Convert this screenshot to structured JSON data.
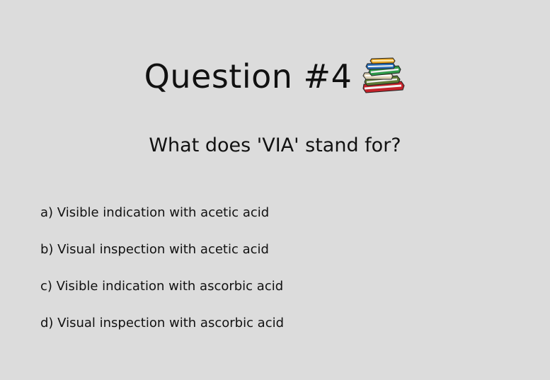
{
  "slide": {
    "title": "Question #4",
    "title_icon": "books-stack-icon",
    "question": "What does 'VIA' stand for?",
    "options": [
      {
        "label": "a) Visible indication with acetic acid"
      },
      {
        "label": "b) Visual inspection with acetic acid"
      },
      {
        "label": "c) Visible indication with ascorbic acid"
      },
      {
        "label": "d) Visual inspection with ascorbic acid"
      }
    ]
  },
  "colors": {
    "background": "#dcdcdc",
    "text": "#111111"
  }
}
